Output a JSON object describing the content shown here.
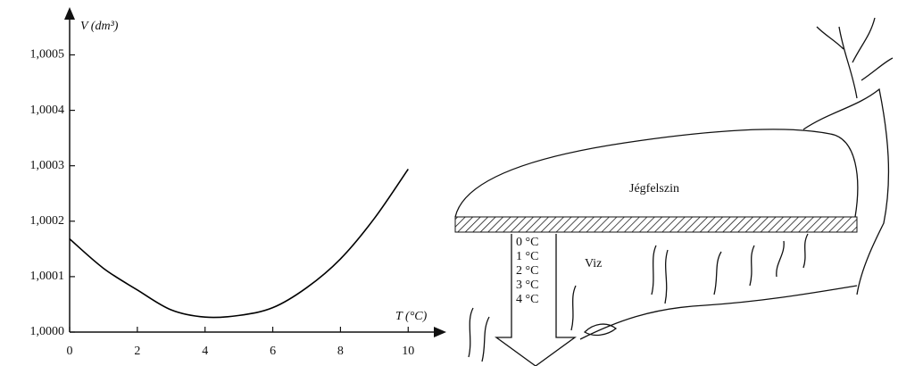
{
  "chart_data": {
    "type": "line",
    "x_label": "T (°C)",
    "y_label": "V (dm³)",
    "x": [
      0,
      1,
      2,
      3,
      4,
      5,
      6,
      7,
      8,
      9,
      10
    ],
    "values": [
      1.000168,
      1.000115,
      1.000076,
      1.00004,
      1.000027,
      1.00003,
      1.000044,
      1.00008,
      1.000132,
      1.000205,
      1.000294
    ],
    "color": "#000000",
    "xlim": [
      0,
      11.1
    ],
    "ylim": [
      1.0,
      1.00057
    ],
    "xticks": [
      0,
      2,
      4,
      6,
      8,
      10
    ],
    "yticks": [
      {
        "value": 1.0,
        "label": "1,0000"
      },
      {
        "value": 1.0001,
        "label": "1,0001"
      },
      {
        "value": 1.0002,
        "label": "1,0002"
      },
      {
        "value": 1.0003,
        "label": "1,0003"
      },
      {
        "value": 1.0004,
        "label": "1,0004"
      },
      {
        "value": 1.0005,
        "label": "1,0005"
      }
    ],
    "grid": false
  },
  "illustration": {
    "ice_label": "Jégfelszin",
    "water_label": "Viz",
    "depth_labels": [
      "0 °C",
      "1 °C",
      "2 °C",
      "3 °C",
      "4 °C"
    ]
  }
}
